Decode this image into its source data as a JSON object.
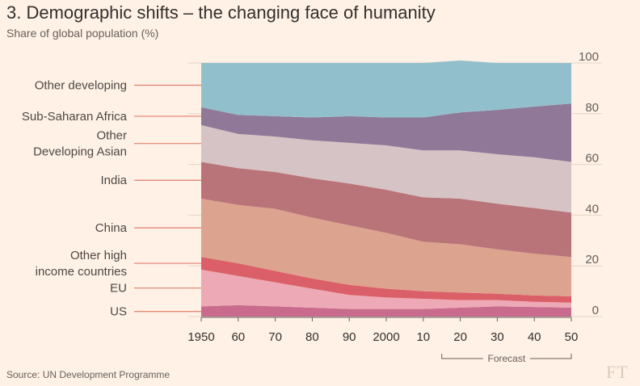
{
  "header": {
    "title": "3. Demographic shifts – the changing face of humanity",
    "subtitle": "Share of global population (%)"
  },
  "footer": {
    "source": "Source: UN Development Programme",
    "logo": "FT"
  },
  "chart_data": {
    "type": "area",
    "stacked": true,
    "title": "3. Demographic shifts – the changing face of humanity",
    "ylabel": "Share of global population (%)",
    "ylim": [
      0,
      100
    ],
    "yticks": [
      0,
      20,
      40,
      60,
      80,
      100
    ],
    "ytick_labels": [
      "0",
      "20",
      "40",
      "60",
      "80",
      "100"
    ],
    "y_axis_side": "right",
    "x": [
      1950,
      1960,
      1970,
      1980,
      1990,
      2000,
      2010,
      2020,
      2030,
      2040,
      2050
    ],
    "xtick_labels": [
      "1950",
      "60",
      "70",
      "80",
      "90",
      "2000",
      "10",
      "20",
      "30",
      "40",
      "50"
    ],
    "forecast": {
      "label": "Forecast",
      "from": 2015,
      "to": 2050
    },
    "grid": true,
    "series": [
      {
        "name": "US",
        "label": "US",
        "color": "#c96b8d",
        "values": [
          4.0,
          4.5,
          4.0,
          3.5,
          3.0,
          3.0,
          3.0,
          3.5,
          4.0,
          3.8,
          3.5
        ]
      },
      {
        "name": "EU",
        "label": "EU",
        "color": "#eda9b5",
        "values": [
          14.5,
          11.5,
          9.5,
          7.5,
          5.5,
          4.5,
          4.0,
          3.0,
          2.5,
          2.0,
          2.0
        ]
      },
      {
        "name": "Other high income countries",
        "label": "Other high\nincome countries",
        "color": "#db5f68",
        "values": [
          5.0,
          5.0,
          4.5,
          4.0,
          4.0,
          3.5,
          3.0,
          3.0,
          2.5,
          2.5,
          2.5
        ]
      },
      {
        "name": "China",
        "label": "China",
        "color": "#dca38f",
        "values": [
          23.0,
          23.0,
          24.5,
          24.0,
          23.5,
          22.0,
          19.5,
          19.0,
          17.5,
          16.5,
          15.5
        ]
      },
      {
        "name": "India",
        "label": "India",
        "color": "#b87479",
        "values": [
          14.5,
          14.5,
          14.5,
          15.5,
          16.5,
          17.0,
          17.5,
          18.0,
          18.0,
          18.0,
          17.5
        ]
      },
      {
        "name": "Other Developing Asian",
        "label": "Other\nDeveloping Asian",
        "color": "#d6c3c5",
        "values": [
          14.5,
          13.5,
          14.0,
          15.0,
          16.0,
          17.5,
          18.5,
          19.0,
          19.5,
          20.0,
          20.0
        ]
      },
      {
        "name": "Sub-Saharan Africa",
        "label": "Sub-Saharan Africa",
        "color": "#8f7898",
        "values": [
          7.0,
          7.5,
          8.0,
          9.0,
          10.5,
          11.0,
          13.0,
          15.0,
          17.5,
          20.0,
          23.0
        ]
      },
      {
        "name": "Other developing",
        "label": "Other developing",
        "color": "#92bfcc",
        "values": [
          17.5,
          20.5,
          21.0,
          21.5,
          21.0,
          21.5,
          21.5,
          20.5,
          18.5,
          17.2,
          16.0
        ]
      }
    ]
  }
}
